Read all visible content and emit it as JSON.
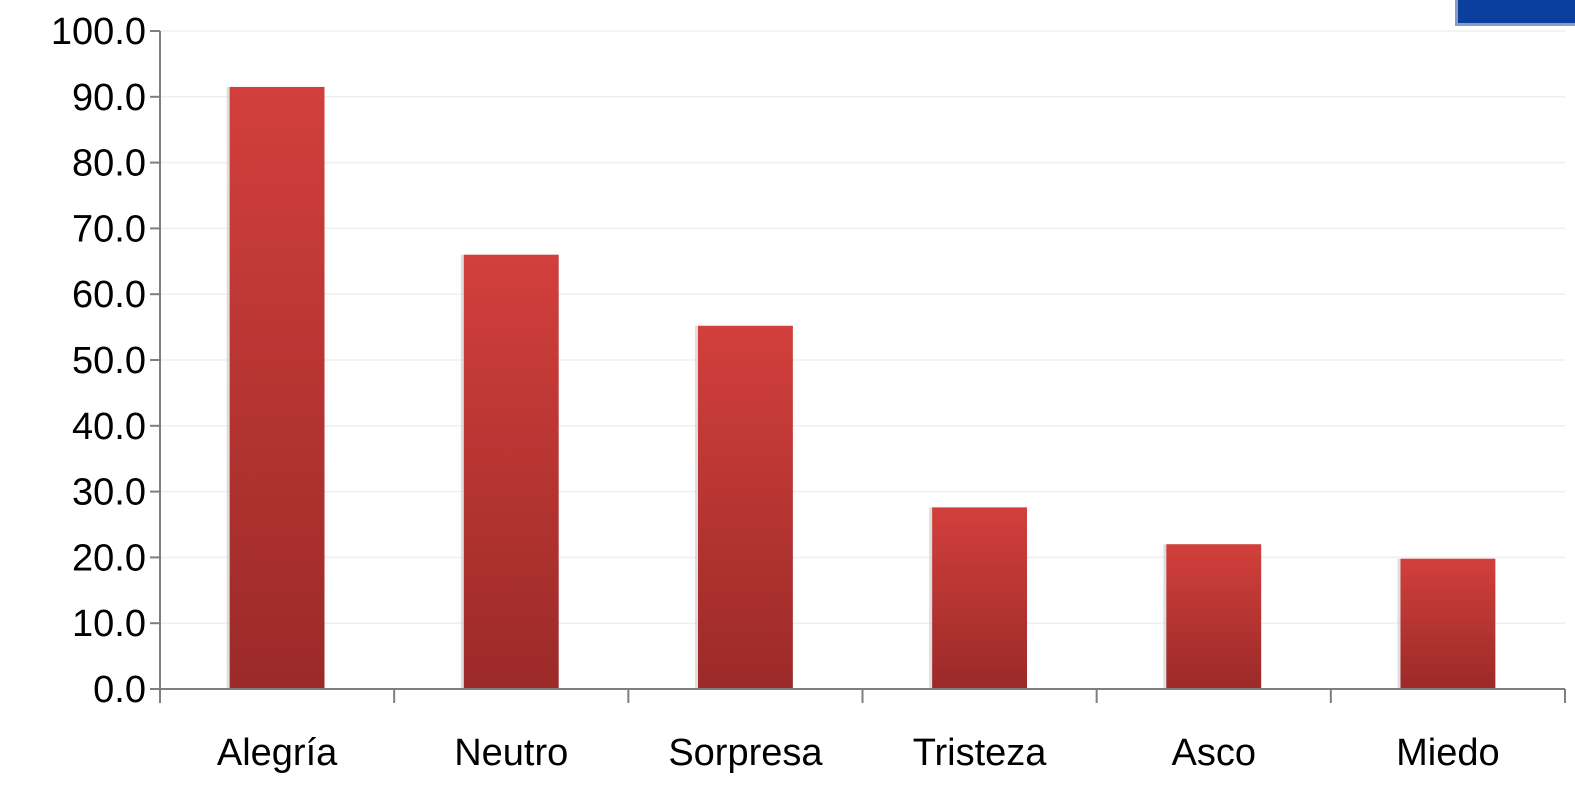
{
  "chart_data": {
    "type": "bar",
    "categories": [
      "Alegría",
      "Neutro",
      "Sorpresa",
      "Tristeza",
      "Asco",
      "Miedo"
    ],
    "values": [
      91.5,
      66.0,
      55.2,
      27.6,
      22.0,
      19.8
    ],
    "ylim": [
      0,
      100
    ],
    "yticks": [
      "0.0",
      "10.0",
      "20.0",
      "30.0",
      "40.0",
      "50.0",
      "60.0",
      "70.0",
      "80.0",
      "90.0",
      "100.0"
    ],
    "title": "",
    "xlabel": "",
    "ylabel": "",
    "grid": true,
    "legend": "none",
    "colors": {
      "bar_top": "#d23f3c",
      "bar_bottom": "#9b2a28",
      "corner_decoration": "#0b3f9f"
    }
  }
}
